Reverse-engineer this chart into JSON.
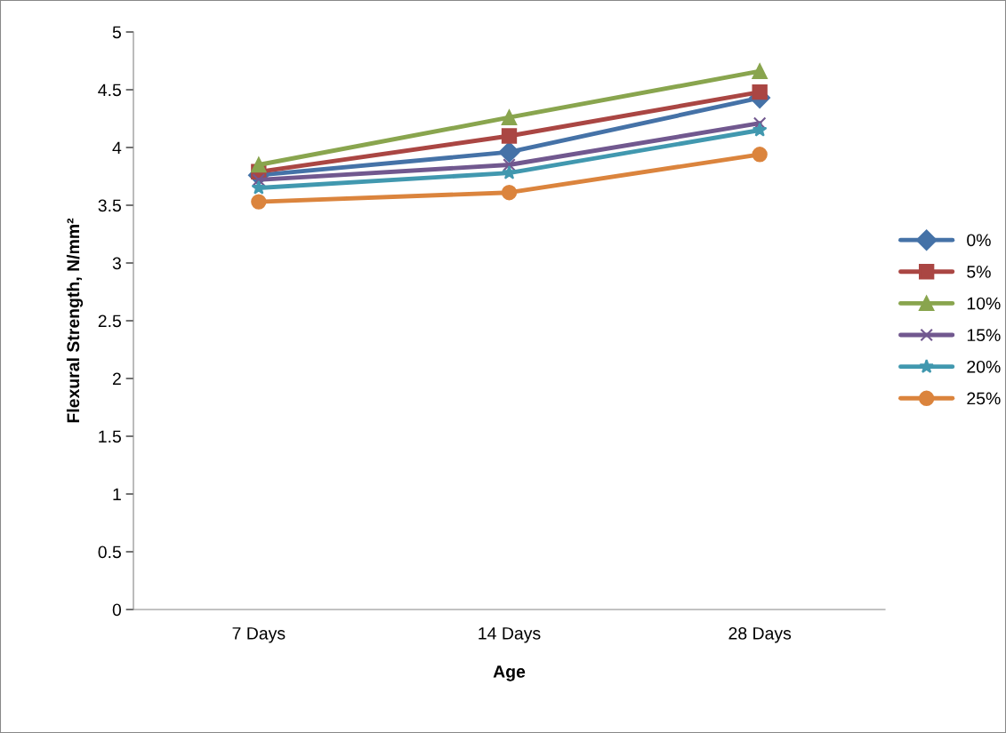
{
  "chart_data": {
    "type": "line",
    "xlabel": "Age",
    "ylabel": "Flexural Strength, N/mm²",
    "categories": [
      "7 Days",
      "14 Days",
      "28 Days"
    ],
    "ylim": [
      0,
      5
    ],
    "yticks": [
      0,
      0.5,
      1,
      1.5,
      2,
      2.5,
      3,
      3.5,
      4,
      4.5,
      5
    ],
    "grid": false,
    "legend": "right",
    "series": [
      {
        "name": "0%",
        "color": "#4572a7",
        "marker": "diamond",
        "values": [
          3.76,
          3.96,
          4.43
        ]
      },
      {
        "name": "5%",
        "color": "#aa4643",
        "marker": "square",
        "values": [
          3.79,
          4.1,
          4.48
        ]
      },
      {
        "name": "10%",
        "color": "#89a54e",
        "marker": "triangle",
        "values": [
          3.85,
          4.26,
          4.66
        ]
      },
      {
        "name": "15%",
        "color": "#71588f",
        "marker": "cross",
        "values": [
          3.72,
          3.85,
          4.21
        ]
      },
      {
        "name": "20%",
        "color": "#4198af",
        "marker": "star",
        "values": [
          3.65,
          3.78,
          4.15
        ]
      },
      {
        "name": "25%",
        "color": "#db843d",
        "marker": "circle",
        "values": [
          3.53,
          3.61,
          3.94
        ]
      }
    ]
  }
}
